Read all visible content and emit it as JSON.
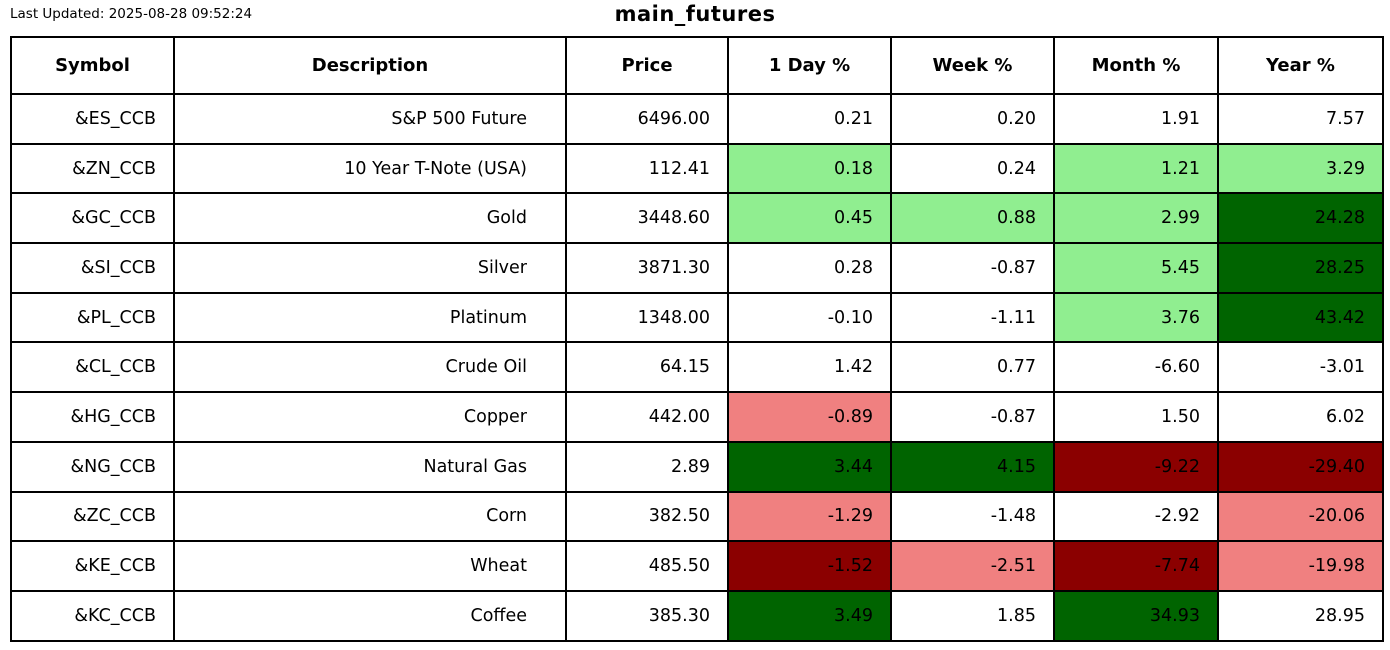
{
  "header": {
    "last_updated": "Last Updated: 2025-08-28 09:52:24",
    "title": "main_futures"
  },
  "highlight_colors": {
    "w": "#FFFFFF",
    "lg": "#90EE90",
    "dg": "#006400",
    "lr": "#F08080",
    "dr": "#8B0000"
  },
  "chart_data": {
    "type": "table",
    "title": "main_futures",
    "last_updated": "Last Updated: 2025-08-28 09:52:24",
    "columns": [
      "Symbol",
      "Description",
      "Price",
      "1 Day %",
      "Week %",
      "Month %",
      "Year %"
    ],
    "rows": [
      {
        "symbol": "&ES_CCB",
        "description": "S&P 500 Future",
        "price": "6496.00",
        "pct": [
          {
            "v": "0.21",
            "c": "w"
          },
          {
            "v": "0.20",
            "c": "w"
          },
          {
            "v": "1.91",
            "c": "w"
          },
          {
            "v": "7.57",
            "c": "w"
          }
        ]
      },
      {
        "symbol": "&ZN_CCB",
        "description": "10 Year T-Note (USA)",
        "price": "112.41",
        "pct": [
          {
            "v": "0.18",
            "c": "lg"
          },
          {
            "v": "0.24",
            "c": "w"
          },
          {
            "v": "1.21",
            "c": "lg"
          },
          {
            "v": "3.29",
            "c": "lg"
          }
        ]
      },
      {
        "symbol": "&GC_CCB",
        "description": "Gold",
        "price": "3448.60",
        "pct": [
          {
            "v": "0.45",
            "c": "lg"
          },
          {
            "v": "0.88",
            "c": "lg"
          },
          {
            "v": "2.99",
            "c": "lg"
          },
          {
            "v": "24.28",
            "c": "dg"
          }
        ]
      },
      {
        "symbol": "&SI_CCB",
        "description": "Silver",
        "price": "3871.30",
        "pct": [
          {
            "v": "0.28",
            "c": "w"
          },
          {
            "v": "-0.87",
            "c": "w"
          },
          {
            "v": "5.45",
            "c": "lg"
          },
          {
            "v": "28.25",
            "c": "dg"
          }
        ]
      },
      {
        "symbol": "&PL_CCB",
        "description": "Platinum",
        "price": "1348.00",
        "pct": [
          {
            "v": "-0.10",
            "c": "w"
          },
          {
            "v": "-1.11",
            "c": "w"
          },
          {
            "v": "3.76",
            "c": "lg"
          },
          {
            "v": "43.42",
            "c": "dg"
          }
        ]
      },
      {
        "symbol": "&CL_CCB",
        "description": "Crude Oil",
        "price": "64.15",
        "pct": [
          {
            "v": "1.42",
            "c": "w"
          },
          {
            "v": "0.77",
            "c": "w"
          },
          {
            "v": "-6.60",
            "c": "w"
          },
          {
            "v": "-3.01",
            "c": "w"
          }
        ]
      },
      {
        "symbol": "&HG_CCB",
        "description": "Copper",
        "price": "442.00",
        "pct": [
          {
            "v": "-0.89",
            "c": "lr"
          },
          {
            "v": "-0.87",
            "c": "w"
          },
          {
            "v": "1.50",
            "c": "w"
          },
          {
            "v": "6.02",
            "c": "w"
          }
        ]
      },
      {
        "symbol": "&NG_CCB",
        "description": "Natural Gas",
        "price": "2.89",
        "pct": [
          {
            "v": "3.44",
            "c": "dg"
          },
          {
            "v": "4.15",
            "c": "dg"
          },
          {
            "v": "-9.22",
            "c": "dr"
          },
          {
            "v": "-29.40",
            "c": "dr"
          }
        ]
      },
      {
        "symbol": "&ZC_CCB",
        "description": "Corn",
        "price": "382.50",
        "pct": [
          {
            "v": "-1.29",
            "c": "lr"
          },
          {
            "v": "-1.48",
            "c": "w"
          },
          {
            "v": "-2.92",
            "c": "w"
          },
          {
            "v": "-20.06",
            "c": "lr"
          }
        ]
      },
      {
        "symbol": "&KE_CCB",
        "description": "Wheat",
        "price": "485.50",
        "pct": [
          {
            "v": "-1.52",
            "c": "dr"
          },
          {
            "v": "-2.51",
            "c": "lr"
          },
          {
            "v": "-7.74",
            "c": "dr"
          },
          {
            "v": "-19.98",
            "c": "lr"
          }
        ]
      },
      {
        "symbol": "&KC_CCB",
        "description": "Coffee",
        "price": "385.30",
        "pct": [
          {
            "v": "3.49",
            "c": "dg"
          },
          {
            "v": "1.85",
            "c": "w"
          },
          {
            "v": "34.93",
            "c": "dg"
          },
          {
            "v": "28.95",
            "c": "w"
          }
        ]
      }
    ]
  }
}
